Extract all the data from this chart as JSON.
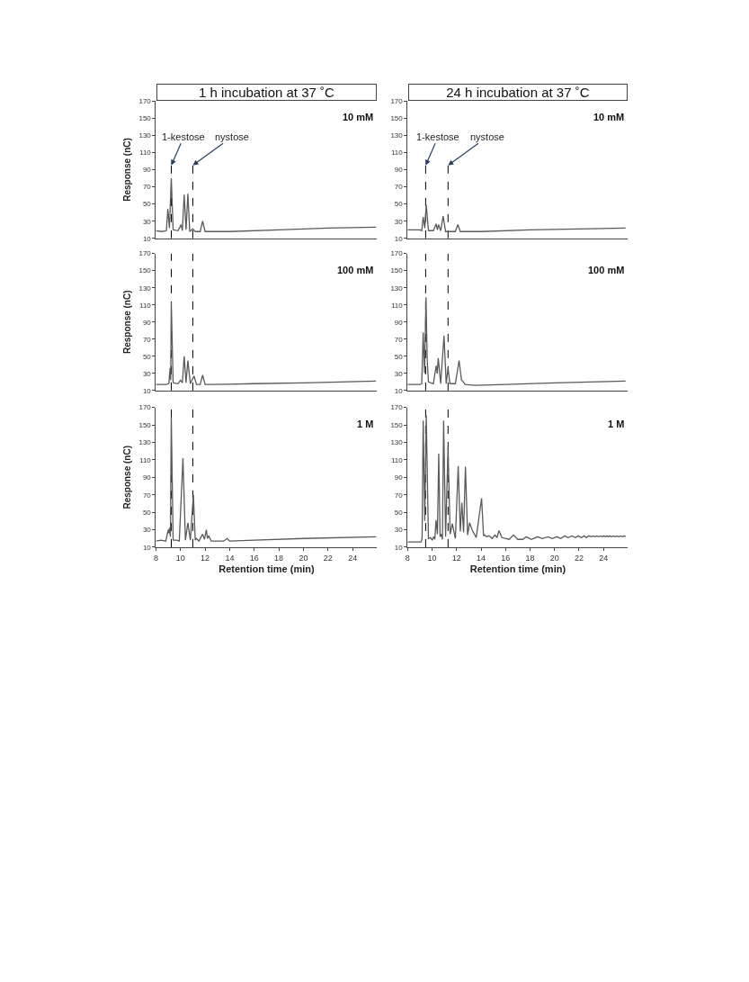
{
  "chart_data": [
    {
      "type": "line",
      "title": "1 h incubation at 37 ˚C",
      "ylabel": "Response (nC)",
      "tick_labels": "y",
      "xlim": [
        8,
        26
      ],
      "xticks": [
        8,
        10,
        12,
        14,
        16,
        18,
        20,
        22,
        24
      ],
      "ylim": [
        10,
        170
      ],
      "yticks": [
        10,
        30,
        50,
        70,
        90,
        110,
        130,
        150,
        170
      ],
      "annotations": [
        "10 mM",
        {
          "text": "1-kestose",
          "x": 9.25,
          "y": 95
        },
        {
          "text": "nystose",
          "x": 11.0,
          "y": 95
        }
      ],
      "ref_lines": [
        {
          "axis": "x",
          "value": 9.25,
          "color": "#000000",
          "line_style": "dashed"
        },
        {
          "axis": "x",
          "value": 11.0,
          "color": "#000000",
          "line_style": "dashed"
        }
      ],
      "series": [
        {
          "color": "#5a5a5a",
          "x": [
            8,
            8.5,
            8.85,
            8.97,
            9.1,
            9.25,
            9.4,
            9.8,
            10.05,
            10.15,
            10.3,
            10.45,
            10.6,
            10.75,
            11.0,
            11.2,
            11.6,
            11.8,
            12.0,
            12.3,
            14,
            18,
            22,
            25.9
          ],
          "values": [
            19,
            18,
            19,
            44,
            22,
            80,
            20,
            19,
            26,
            19,
            61,
            20,
            62,
            18,
            21,
            18,
            18,
            30,
            18,
            18,
            18,
            20,
            22,
            23
          ]
        }
      ]
    },
    {
      "type": "line",
      "title": "24 h incubation at 37 ˚C",
      "tick_labels": "y",
      "xlim": [
        8,
        26
      ],
      "xticks": [
        8,
        10,
        12,
        14,
        16,
        18,
        20,
        22,
        24
      ],
      "ylim": [
        10,
        170
      ],
      "yticks": [
        10,
        30,
        50,
        70,
        90,
        110,
        130,
        150,
        170
      ],
      "annotations": [
        "10 mM",
        {
          "text": "1-kestose",
          "x": 9.47,
          "y": 95
        },
        {
          "text": "nystose",
          "x": 11.3,
          "y": 95
        }
      ],
      "ref_lines": [
        {
          "axis": "x",
          "value": 9.47,
          "color": "#000000",
          "line_style": "dashed"
        },
        {
          "axis": "x",
          "value": 11.3,
          "color": "#000000",
          "line_style": "dashed"
        }
      ],
      "series": [
        {
          "color": "#5a5a5a",
          "x": [
            8,
            9.0,
            9.15,
            9.27,
            9.4,
            9.52,
            9.7,
            10.1,
            10.33,
            10.43,
            10.52,
            10.7,
            10.9,
            11.1,
            11.3,
            11.5,
            11.9,
            12.1,
            12.3,
            14,
            18,
            22,
            25.8
          ],
          "values": [
            20,
            20,
            19,
            35,
            22,
            49,
            19,
            19,
            27,
            20,
            26,
            19,
            36,
            18,
            18,
            18,
            18,
            26,
            18,
            18,
            20,
            21,
            22
          ]
        }
      ]
    },
    {
      "type": "line",
      "ylabel": "Response (nC)",
      "tick_labels": "y",
      "xlim": [
        8,
        26
      ],
      "xticks": [
        8,
        10,
        12,
        14,
        16,
        18,
        20,
        22,
        24
      ],
      "ylim": [
        10,
        170
      ],
      "yticks": [
        10,
        30,
        50,
        70,
        90,
        110,
        130,
        150,
        170
      ],
      "annotations": [
        "100 mM"
      ],
      "ref_lines": [
        {
          "axis": "x",
          "value": 9.25,
          "color": "#000000",
          "line_style": "dashed"
        },
        {
          "axis": "x",
          "value": 11.0,
          "color": "#000000",
          "line_style": "dashed"
        }
      ],
      "series": [
        {
          "color": "#5a5a5a",
          "x": [
            8,
            8.8,
            9.05,
            9.15,
            9.2,
            9.25,
            9.4,
            9.8,
            10.0,
            10.15,
            10.3,
            10.45,
            10.6,
            10.8,
            11.1,
            11.3,
            11.6,
            11.8,
            12.0,
            12.5,
            16,
            20,
            25.9
          ],
          "values": [
            17,
            17,
            18,
            36,
            22,
            113,
            19,
            18,
            22,
            19,
            50,
            19,
            45,
            18,
            27,
            17,
            17,
            28,
            17,
            17,
            18,
            19,
            21
          ]
        }
      ]
    },
    {
      "type": "line",
      "tick_labels": "y",
      "xlim": [
        8,
        26
      ],
      "xticks": [
        8,
        10,
        12,
        14,
        16,
        18,
        20,
        22,
        24
      ],
      "ylim": [
        10,
        170
      ],
      "yticks": [
        10,
        30,
        50,
        70,
        90,
        110,
        130,
        150,
        170
      ],
      "annotations": [
        "100 mM"
      ],
      "ref_lines": [
        {
          "axis": "x",
          "value": 9.47,
          "color": "#000000",
          "line_style": "dashed"
        },
        {
          "axis": "x",
          "value": 11.3,
          "color": "#000000",
          "line_style": "dashed"
        }
      ],
      "series": [
        {
          "color": "#5a5a5a",
          "x": [
            8,
            9.0,
            9.15,
            9.27,
            9.38,
            9.5,
            9.6,
            9.7,
            10.1,
            10.33,
            10.42,
            10.5,
            10.7,
            10.97,
            11.15,
            11.3,
            11.45,
            11.9,
            12.2,
            12.4,
            12.5,
            12.7,
            13.5,
            16,
            20,
            25.8
          ],
          "values": [
            17,
            17,
            18,
            78,
            30,
            119,
            45,
            20,
            18,
            39,
            30,
            48,
            18,
            74,
            18,
            36,
            18,
            18,
            45,
            22,
            21,
            17,
            16,
            17,
            19,
            21
          ]
        }
      ]
    },
    {
      "type": "line",
      "ylabel": "Response (nC)",
      "xlabel": "Retention time (min)",
      "xlim": [
        8,
        26
      ],
      "xticks": [
        8,
        10,
        12,
        14,
        16,
        18,
        20,
        22,
        24
      ],
      "ylim": [
        10,
        170
      ],
      "yticks": [
        10,
        30,
        50,
        70,
        90,
        110,
        130,
        150,
        170
      ],
      "annotations": [
        "1 M"
      ],
      "ref_lines": [
        {
          "axis": "x",
          "value": 9.25,
          "color": "#000000",
          "line_style": "dashed"
        },
        {
          "axis": "x",
          "value": 11.0,
          "color": "#000000",
          "line_style": "dashed"
        }
      ],
      "series": [
        {
          "color": "#5a5a5a",
          "x": [
            8,
            8.4,
            8.8,
            9.0,
            9.05,
            9.1,
            9.18,
            9.25,
            9.4,
            9.7,
            9.9,
            10.2,
            10.4,
            10.6,
            10.8,
            11.05,
            11.2,
            11.3,
            11.5,
            11.8,
            11.95,
            12.1,
            12.2,
            12.3,
            12.5,
            13.5,
            13.8,
            14.0,
            16,
            20,
            25.9
          ],
          "values": [
            17,
            18,
            17,
            30,
            26,
            32,
            22,
            159,
            18,
            18,
            17,
            112,
            18,
            38,
            18,
            70,
            18,
            20,
            17,
            25,
            19,
            30,
            20,
            23,
            17,
            17,
            20,
            17,
            18,
            20,
            22
          ]
        }
      ]
    },
    {
      "type": "line",
      "xlabel": "Retention time (min)",
      "xlim": [
        8,
        26
      ],
      "xticks": [
        8,
        10,
        12,
        14,
        16,
        18,
        20,
        22,
        24
      ],
      "ylim": [
        10,
        170
      ],
      "yticks": [
        10,
        30,
        50,
        70,
        90,
        110,
        130,
        150,
        170
      ],
      "annotations": [
        "1 M"
      ],
      "ref_lines": [
        {
          "axis": "x",
          "value": 9.47,
          "color": "#000000",
          "line_style": "dashed"
        },
        {
          "axis": "x",
          "value": 11.3,
          "color": "#000000",
          "line_style": "dashed"
        }
      ],
      "series": [
        {
          "color": "#5a5a5a",
          "x": [
            8,
            9.1,
            9.18,
            9.27,
            9.4,
            9.52,
            9.7,
            9.88,
            10.0,
            10.13,
            10.22,
            10.32,
            10.43,
            10.54,
            10.65,
            10.74,
            10.84,
            10.94,
            11.1,
            11.3,
            11.47,
            11.65,
            11.9,
            12.13,
            12.3,
            12.43,
            12.57,
            12.72,
            12.9,
            13.06,
            13.26,
            13.6,
            14.04,
            14.2,
            14.29,
            14.45,
            14.65,
            14.9,
            15.14,
            15.3,
            15.46,
            15.7,
            16.3,
            16.64,
            17.0,
            17.4,
            17.69,
            18.1,
            18.62,
            19.0,
            19.47,
            19.8,
            20.2,
            20.5,
            20.84,
            21.1,
            21.43,
            21.7,
            21.94,
            22.2,
            22.4,
            22.6,
            22.8,
            23.0,
            23.15,
            23.3,
            23.45,
            23.6,
            23.75,
            23.9,
            24.0,
            24.15,
            24.27,
            24.4,
            24.5,
            24.65,
            24.8,
            24.95,
            25.1,
            25.25,
            25.4,
            25.55,
            25.7,
            25.8
          ],
          "values": [
            16,
            16,
            20,
            155,
            40,
            161,
            20,
            21,
            18,
            22,
            19,
            41,
            25,
            117,
            22,
            25,
            19,
            155,
            22,
            124,
            25,
            37,
            20,
            103,
            28,
            61,
            27,
            102,
            24,
            38,
            30,
            21,
            66,
            23,
            24,
            22,
            23,
            20,
            24,
            21,
            29,
            21,
            19,
            24,
            19,
            19,
            22,
            19,
            22,
            20,
            22,
            20,
            22,
            20,
            23,
            21,
            23,
            21,
            23,
            21,
            23,
            21,
            23,
            22,
            23,
            22,
            23,
            22,
            23,
            22,
            23,
            22,
            23,
            22,
            23,
            22,
            23,
            22,
            23,
            22,
            23,
            22,
            23,
            22
          ]
        }
      ]
    }
  ]
}
